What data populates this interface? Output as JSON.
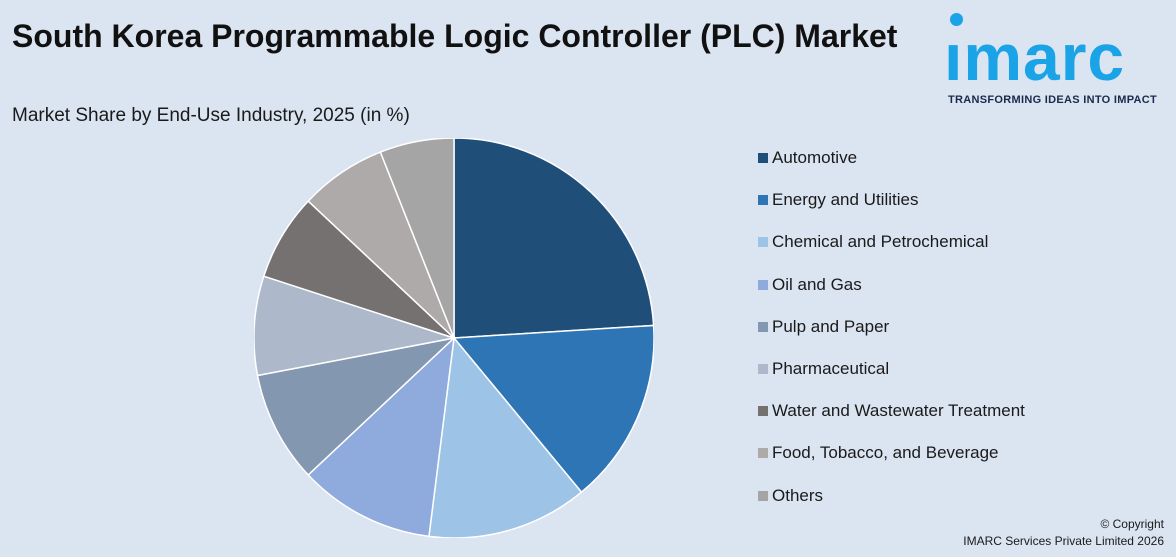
{
  "title": "South Korea Programmable Logic Controller (PLC) Market",
  "subtitle": "Market Share by End-Use Industry, 2025 (in %)",
  "logo": {
    "word": "ımarc",
    "tagline": "TRANSFORMING IDEAS INTO IMPACT"
  },
  "copyright": {
    "line1": "© Copyright",
    "line2": "IMARC Services Private Limited 2026"
  },
  "chart_data": {
    "type": "pie",
    "categories": [
      "Automotive",
      "Energy and Utilities",
      "Chemical and Petrochemical",
      "Oil and Gas",
      "Pulp and Paper",
      "Pharmaceutical",
      "Water and Wastewater Treatment",
      "Food, Tobacco, and Beverage",
      "Others"
    ],
    "values": [
      24,
      15,
      13,
      11,
      9,
      8,
      7,
      7,
      6
    ],
    "colors": [
      "#1f4e79",
      "#2e75b6",
      "#9dc3e6",
      "#8faadc",
      "#8497b0",
      "#adb9ca",
      "#767171",
      "#aeaaaa",
      "#a5a5a5"
    ],
    "legend_position": "right",
    "start_angle": "top, clockwise"
  }
}
